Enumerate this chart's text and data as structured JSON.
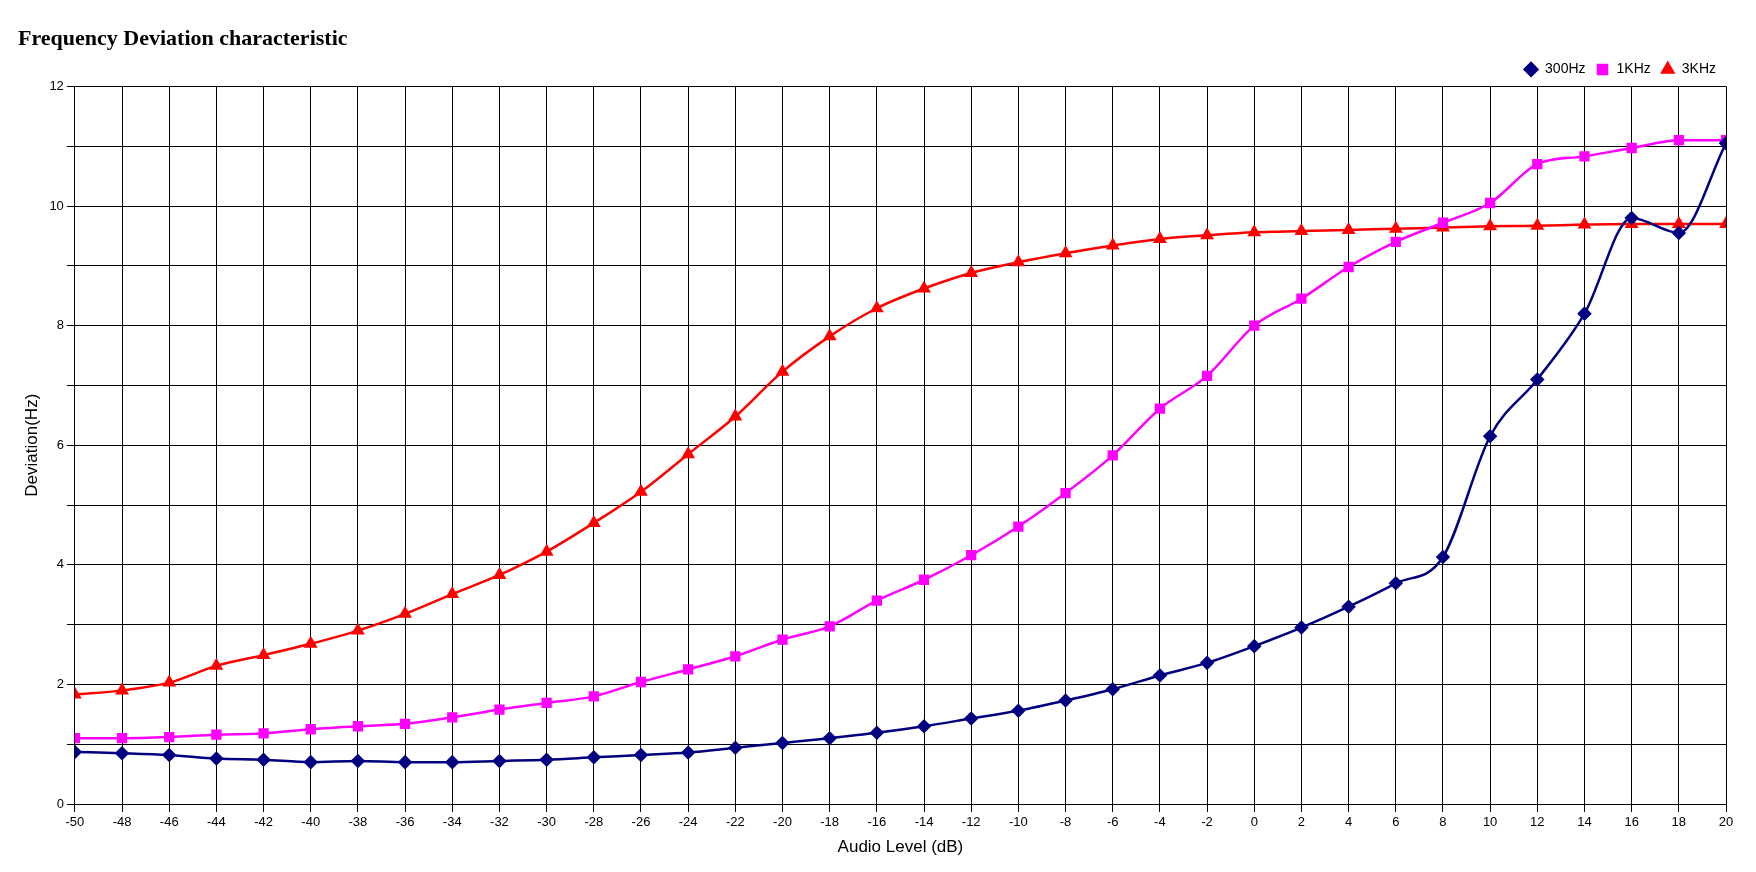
{
  "chart_data": {
    "type": "line",
    "title": "Frequency Deviation characteristic",
    "xlabel": "Audio Level (dB)",
    "ylabel": "Deviation(Hz)",
    "x": [
      -50,
      -48,
      -46,
      -44,
      -42,
      -40,
      -38,
      -36,
      -34,
      -32,
      -30,
      -28,
      -26,
      -24,
      -22,
      -20,
      -18,
      -16,
      -14,
      -12,
      -10,
      -8,
      -6,
      -4,
      -2,
      0,
      2,
      4,
      6,
      8,
      10,
      12,
      14,
      16,
      18,
      20
    ],
    "xlim": [
      -50,
      20
    ],
    "xticks": [
      -50,
      -48,
      -46,
      -44,
      -42,
      -40,
      -38,
      -36,
      -34,
      -32,
      -30,
      -28,
      -26,
      -24,
      -22,
      -20,
      -18,
      -16,
      -14,
      -12,
      -10,
      -8,
      -6,
      -4,
      -2,
      0,
      2,
      4,
      6,
      8,
      10,
      12,
      14,
      16,
      18,
      20
    ],
    "ylim": [
      0,
      12
    ],
    "yticks": [
      0,
      {
        "value": 1,
        "label": null
      },
      2,
      {
        "value": 3,
        "label": null
      },
      4,
      {
        "value": 5,
        "label": null
      },
      6,
      {
        "value": 7,
        "label": null
      },
      8,
      {
        "value": 9,
        "label": null
      },
      10,
      {
        "value": 11,
        "label": null
      },
      12
    ],
    "grid": true,
    "legend": "top right",
    "line_style": "solid",
    "series": [
      {
        "name": "300Hz",
        "color": "#000080",
        "marker": "diamond",
        "values": [
          0.87,
          0.85,
          0.82,
          0.76,
          0.74,
          0.7,
          0.72,
          0.7,
          0.7,
          0.72,
          0.74,
          0.78,
          0.82,
          0.86,
          0.94,
          1.02,
          1.1,
          1.19,
          1.3,
          1.43,
          1.56,
          1.73,
          1.92,
          2.15,
          2.36,
          2.64,
          2.95,
          3.3,
          3.69,
          4.13,
          6.15,
          7.1,
          8.2,
          9.8,
          9.55,
          11.05
        ]
      },
      {
        "name": "1KHz",
        "color": "#ff00ff",
        "marker": "square",
        "values": [
          1.1,
          1.1,
          1.12,
          1.16,
          1.18,
          1.25,
          1.3,
          1.34,
          1.45,
          1.58,
          1.69,
          1.8,
          2.04,
          2.25,
          2.47,
          2.75,
          2.97,
          3.4,
          3.75,
          4.16,
          4.64,
          5.2,
          5.83,
          6.61,
          7.16,
          8.0,
          8.45,
          8.98,
          9.4,
          9.72,
          10.05,
          10.7,
          10.83,
          10.97,
          11.1,
          11.1
        ]
      },
      {
        "name": "3KHz",
        "color": "#ff0000",
        "marker": "triangle",
        "values": [
          1.83,
          1.9,
          2.03,
          2.31,
          2.49,
          2.68,
          2.9,
          3.18,
          3.51,
          3.83,
          4.22,
          4.7,
          5.22,
          5.85,
          6.48,
          7.23,
          7.82,
          8.29,
          8.62,
          8.88,
          9.06,
          9.21,
          9.34,
          9.45,
          9.51,
          9.56,
          9.58,
          9.6,
          9.62,
          9.64,
          9.66,
          9.67,
          9.69,
          9.7,
          9.7,
          9.7
        ]
      }
    ]
  }
}
